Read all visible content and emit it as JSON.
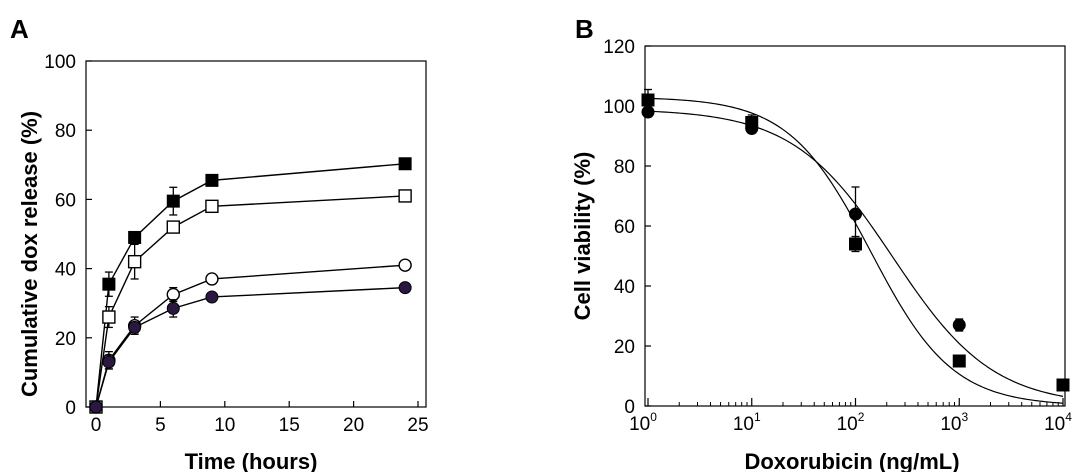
{
  "chart_data": [
    {
      "panel": "A",
      "type": "line",
      "xlabel": "Time (hours)",
      "ylabel": "Cumulative dox release (%)",
      "xlim": [
        0,
        25
      ],
      "ylim": [
        0,
        100
      ],
      "xticks": [
        "0",
        "5",
        "10",
        "15",
        "20",
        "25"
      ],
      "yticks": [
        "0",
        "20",
        "40",
        "60",
        "80",
        "100"
      ],
      "grid": false,
      "x": [
        0,
        1,
        3,
        6,
        9,
        24
      ],
      "series": [
        {
          "marker": "filled-square",
          "color": "#000000",
          "values": [
            0,
            35.5,
            49,
            59.5,
            65.5,
            70.3
          ],
          "errors": [
            0,
            3.5,
            1,
            4,
            0.8,
            1.5
          ]
        },
        {
          "marker": "open-square",
          "color": "#000000",
          "values": [
            0,
            26,
            42,
            52,
            58,
            61
          ],
          "errors": [
            0,
            3,
            5,
            1,
            1,
            1.5
          ]
        },
        {
          "marker": "open-circle",
          "color": "#000000",
          "values": [
            0,
            13.5,
            23.5,
            32.5,
            37,
            41
          ],
          "errors": [
            0,
            2.5,
            2.5,
            2,
            1,
            1
          ]
        },
        {
          "marker": "filled-circle",
          "color": "#2a1840",
          "values": [
            0,
            13,
            23,
            28.5,
            31.8,
            34.5
          ],
          "errors": [
            0,
            2,
            1.5,
            2.5,
            1,
            0.8
          ]
        }
      ]
    },
    {
      "panel": "B",
      "type": "scatter",
      "xlabel": "Doxorubicin (ng/mL)",
      "ylabel": "Cell viability (%)",
      "xscale": "log",
      "xlim": [
        1,
        10000
      ],
      "ylim": [
        0,
        120
      ],
      "xticks": [
        {
          "base": "10",
          "exp": "0"
        },
        {
          "base": "10",
          "exp": "1"
        },
        {
          "base": "10",
          "exp": "2"
        },
        {
          "base": "10",
          "exp": "3"
        },
        {
          "base": "10",
          "exp": "4"
        }
      ],
      "yticks": [
        "0",
        "20",
        "40",
        "60",
        "80",
        "100",
        "120"
      ],
      "grid": false,
      "series": [
        {
          "marker": "filled-square",
          "color": "#000000",
          "x": [
            1,
            10,
            100,
            1000,
            10000
          ],
          "values": [
            102,
            94.5,
            54,
            15,
            7
          ],
          "errors": [
            3.5,
            2.5,
            2.5,
            1,
            1
          ],
          "fit_ic50": 140,
          "fit_hill": 1.1
        },
        {
          "marker": "filled-circle",
          "color": "#000000",
          "x": [
            1,
            10,
            100,
            1000
          ],
          "values": [
            98,
            92.5,
            64,
            27
          ],
          "errors": [
            1.5,
            1.5,
            9,
            2
          ],
          "fit_ic50": 230,
          "fit_hill": 0.9
        }
      ]
    }
  ]
}
